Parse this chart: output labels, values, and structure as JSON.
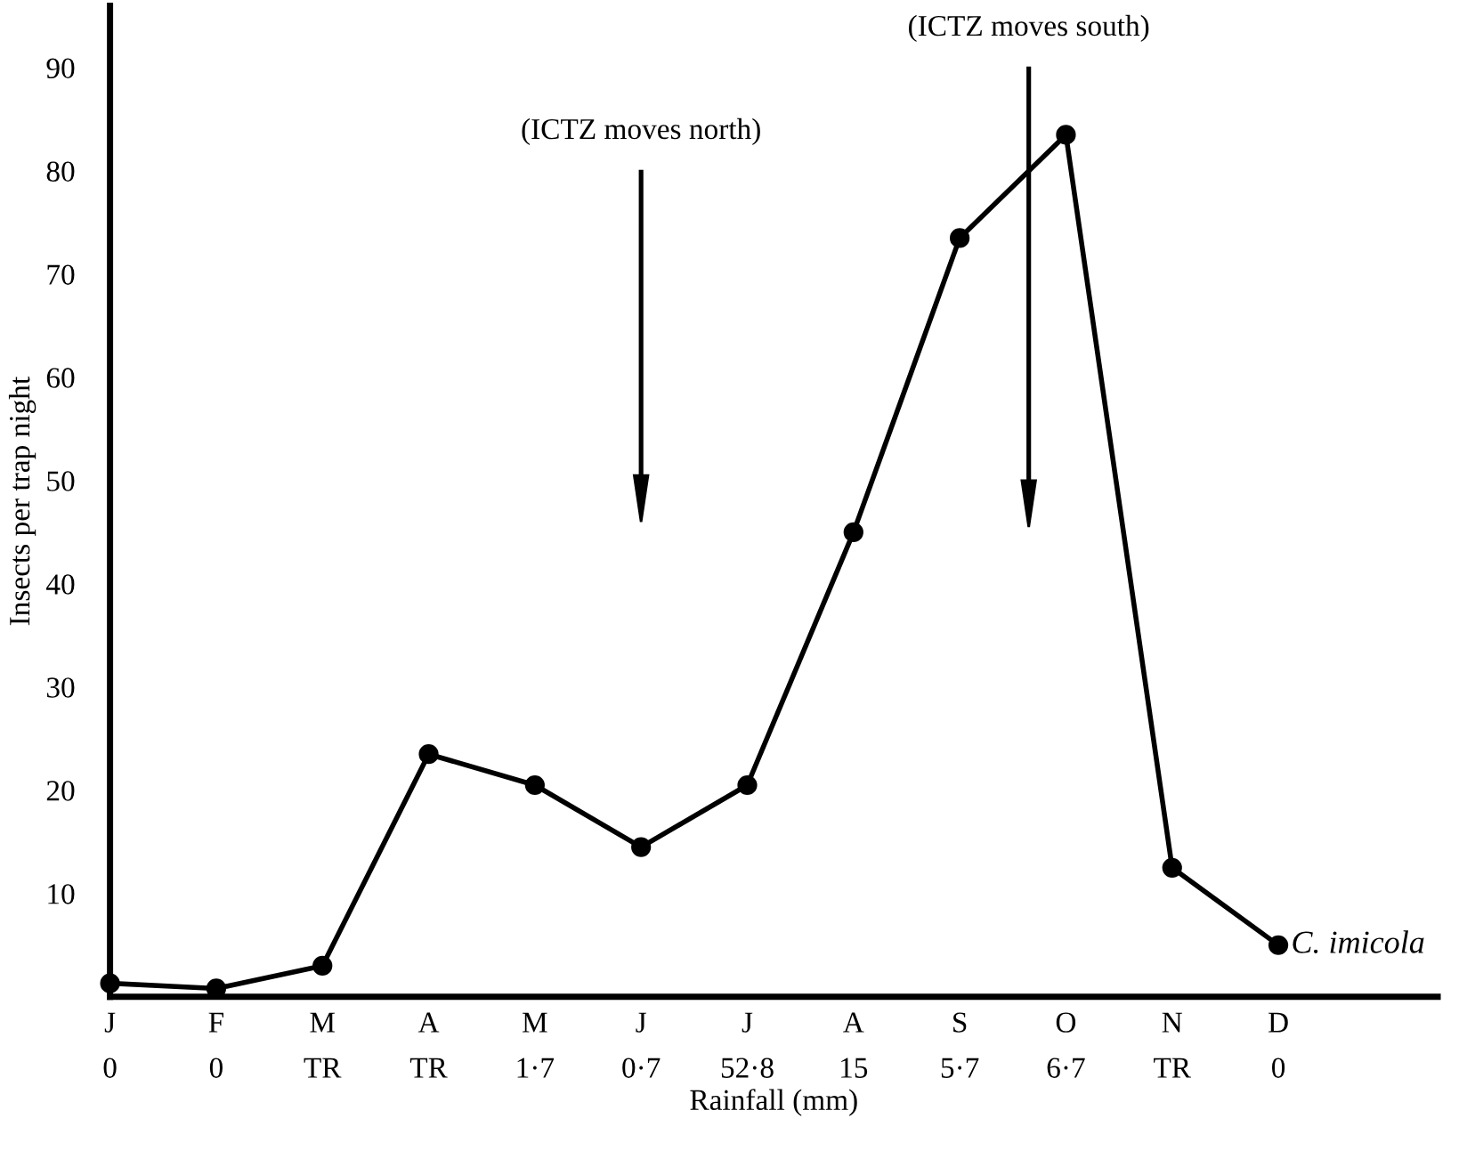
{
  "chart_data": {
    "type": "line",
    "ylabel": "Insects per trap night",
    "xlabel": "Rainfall (mm)",
    "categories": [
      "J\n0",
      "F\n0",
      "M\nTR",
      "A\nTR",
      "M\n1·7",
      "J\n0·7",
      "J\n52·8",
      "A\n15",
      "S\n5·7",
      "O\n6·7",
      "N\nTR",
      "D\n0"
    ],
    "series": [
      {
        "name": "C. imicola",
        "color": "#000000",
        "values": [
          1.3,
          0.8,
          3,
          23.5,
          20.5,
          14.5,
          20.5,
          45,
          73.5,
          83.5,
          12.5,
          5
        ]
      }
    ],
    "ylim": [
      0,
      96
    ],
    "yticks": [
      10,
      20,
      30,
      40,
      50,
      60,
      70,
      80,
      90
    ],
    "marker": "circle",
    "line_style": "solid",
    "grid": false,
    "legend": false,
    "annotations": [
      "(ICTZ moves north)",
      "(ICTZ moves south)"
    ]
  }
}
